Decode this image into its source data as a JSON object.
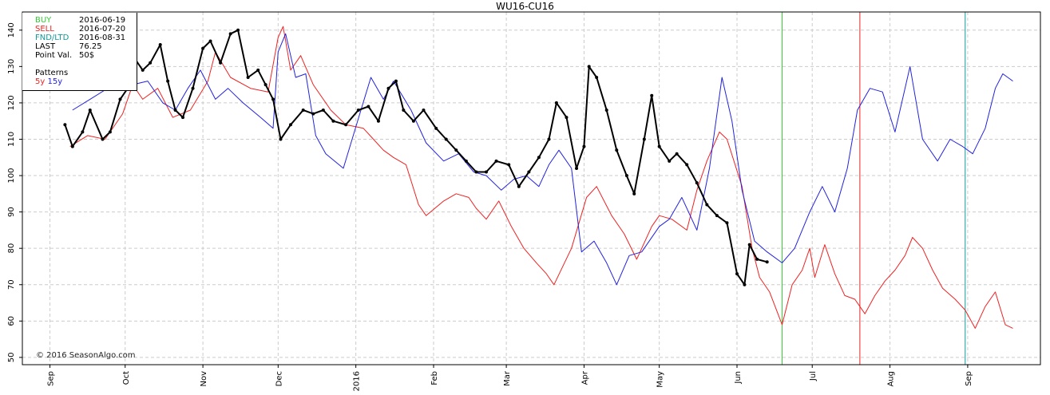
{
  "title": "WU16-CU16",
  "info": {
    "buy_label": "BUY",
    "buy_date": "2016-06-19",
    "sell_label": "SELL",
    "sell_date": "2016-07-20",
    "fnd_label": "FND/LTD",
    "fnd_date": "2016-08-31",
    "last_label": "LAST",
    "last_value": "76.25",
    "point_label": "Point Val.",
    "point_value": "50$",
    "patterns_label": "Patterns",
    "p5": "5y",
    "p15": "15y"
  },
  "credit": "© 2016 SeasonAlgo.com",
  "colors": {
    "buy": "#33cc33",
    "sell": "#ee2222",
    "fnd": "#119999",
    "p5": "#ee2222",
    "p15": "#2222dd",
    "price": "#000000"
  },
  "chart_data": {
    "type": "line",
    "title": "WU16-CU16",
    "ylim": [
      48,
      145
    ],
    "yticks": [
      50,
      60,
      70,
      80,
      90,
      100,
      110,
      120,
      130,
      140
    ],
    "xlim": [
      "2015-08-21",
      "2016-09-30"
    ],
    "xticks": [
      {
        "label": "Sep",
        "date": "2015-09-01"
      },
      {
        "label": "Oct",
        "date": "2015-10-01"
      },
      {
        "label": "Nov",
        "date": "2015-11-01"
      },
      {
        "label": "Dec",
        "date": "2015-12-01"
      },
      {
        "label": "2016",
        "date": "2016-01-01"
      },
      {
        "label": "Feb",
        "date": "2016-02-01"
      },
      {
        "label": "Mar",
        "date": "2016-03-01"
      },
      {
        "label": "Apr",
        "date": "2016-04-01"
      },
      {
        "label": "May",
        "date": "2016-05-01"
      },
      {
        "label": "Jun",
        "date": "2016-06-01"
      },
      {
        "label": "Jul",
        "date": "2016-07-01"
      },
      {
        "label": "Aug",
        "date": "2016-08-01"
      },
      {
        "label": "Sep",
        "date": "2016-09-01"
      }
    ],
    "grid": true,
    "vlines": [
      {
        "name": "BUY",
        "date": "2016-06-19"
      },
      {
        "name": "SELL",
        "date": "2016-07-20"
      },
      {
        "name": "FND/LTD",
        "date": "2016-08-31"
      }
    ],
    "series": [
      {
        "name": "5y",
        "style": "thin",
        "points": [
          [
            "2015-09-09",
            108
          ],
          [
            "2015-09-16",
            111
          ],
          [
            "2015-09-23",
            110
          ],
          [
            "2015-09-30",
            117
          ],
          [
            "2015-10-04",
            125
          ],
          [
            "2015-10-08",
            121
          ],
          [
            "2015-10-14",
            124
          ],
          [
            "2015-10-20",
            116
          ],
          [
            "2015-10-27",
            118
          ],
          [
            "2015-11-03",
            126
          ],
          [
            "2015-11-06",
            134
          ],
          [
            "2015-11-12",
            127
          ],
          [
            "2015-11-20",
            124
          ],
          [
            "2015-11-27",
            123
          ],
          [
            "2015-12-01",
            138
          ],
          [
            "2015-12-03",
            141
          ],
          [
            "2015-12-06",
            129
          ],
          [
            "2015-12-10",
            133
          ],
          [
            "2015-12-15",
            125
          ],
          [
            "2015-12-22",
            118
          ],
          [
            "2015-12-28",
            114
          ],
          [
            "2016-01-04",
            113
          ],
          [
            "2016-01-08",
            110
          ],
          [
            "2016-01-12",
            107
          ],
          [
            "2016-01-16",
            105
          ],
          [
            "2016-01-21",
            103
          ],
          [
            "2016-01-26",
            92
          ],
          [
            "2016-01-29",
            89
          ],
          [
            "2016-02-05",
            93
          ],
          [
            "2016-02-10",
            95
          ],
          [
            "2016-02-15",
            94
          ],
          [
            "2016-02-18",
            91
          ],
          [
            "2016-02-22",
            88
          ],
          [
            "2016-02-27",
            93
          ],
          [
            "2016-03-03",
            86
          ],
          [
            "2016-03-08",
            80
          ],
          [
            "2016-03-13",
            76
          ],
          [
            "2016-03-17",
            73
          ],
          [
            "2016-03-20",
            70
          ],
          [
            "2016-03-27",
            80
          ],
          [
            "2016-04-02",
            94
          ],
          [
            "2016-04-06",
            97
          ],
          [
            "2016-04-12",
            89
          ],
          [
            "2016-04-17",
            84
          ],
          [
            "2016-04-22",
            77
          ],
          [
            "2016-04-28",
            86
          ],
          [
            "2016-05-01",
            89
          ],
          [
            "2016-05-06",
            88
          ],
          [
            "2016-05-12",
            85
          ],
          [
            "2016-05-16",
            96
          ],
          [
            "2016-05-20",
            104
          ],
          [
            "2016-05-25",
            112
          ],
          [
            "2016-05-28",
            110
          ],
          [
            "2016-06-03",
            97
          ],
          [
            "2016-06-07",
            80
          ],
          [
            "2016-06-10",
            72
          ],
          [
            "2016-06-14",
            68
          ],
          [
            "2016-06-19",
            59
          ],
          [
            "2016-06-23",
            70
          ],
          [
            "2016-06-27",
            74
          ],
          [
            "2016-06-30",
            80
          ],
          [
            "2016-07-02",
            72
          ],
          [
            "2016-07-06",
            81
          ],
          [
            "2016-07-10",
            73
          ],
          [
            "2016-07-14",
            67
          ],
          [
            "2016-07-18",
            66
          ],
          [
            "2016-07-22",
            62
          ],
          [
            "2016-07-26",
            67
          ],
          [
            "2016-07-30",
            71
          ],
          [
            "2016-08-03",
            74
          ],
          [
            "2016-08-07",
            78
          ],
          [
            "2016-08-10",
            83
          ],
          [
            "2016-08-14",
            80
          ],
          [
            "2016-08-18",
            74
          ],
          [
            "2016-08-22",
            69
          ],
          [
            "2016-08-27",
            66
          ],
          [
            "2016-08-31",
            63
          ],
          [
            "2016-09-04",
            58
          ],
          [
            "2016-09-08",
            64
          ],
          [
            "2016-09-12",
            68
          ],
          [
            "2016-09-16",
            59
          ],
          [
            "2016-09-19",
            58
          ]
        ]
      },
      {
        "name": "15y",
        "style": "thin",
        "points": [
          [
            "2015-09-10",
            118
          ],
          [
            "2015-09-17",
            121
          ],
          [
            "2015-09-24",
            124
          ],
          [
            "2015-09-30",
            126
          ],
          [
            "2015-10-04",
            125
          ],
          [
            "2015-10-10",
            126
          ],
          [
            "2015-10-16",
            120
          ],
          [
            "2015-10-21",
            118
          ],
          [
            "2015-10-26",
            124
          ],
          [
            "2015-10-31",
            129
          ],
          [
            "2015-11-06",
            121
          ],
          [
            "2015-11-11",
            124
          ],
          [
            "2015-11-17",
            120
          ],
          [
            "2015-11-24",
            116
          ],
          [
            "2015-11-29",
            113
          ],
          [
            "2015-12-01",
            134
          ],
          [
            "2015-12-04",
            139
          ],
          [
            "2015-12-08",
            127
          ],
          [
            "2015-12-12",
            128
          ],
          [
            "2015-12-16",
            111
          ],
          [
            "2015-12-20",
            106
          ],
          [
            "2015-12-27",
            102
          ],
          [
            "2016-01-03",
            118
          ],
          [
            "2016-01-07",
            127
          ],
          [
            "2016-01-12",
            121
          ],
          [
            "2016-01-16",
            126
          ],
          [
            "2016-01-23",
            118
          ],
          [
            "2016-01-29",
            109
          ],
          [
            "2016-02-05",
            104
          ],
          [
            "2016-02-11",
            106
          ],
          [
            "2016-02-17",
            101
          ],
          [
            "2016-02-22",
            100
          ],
          [
            "2016-02-28",
            96
          ],
          [
            "2016-03-04",
            99
          ],
          [
            "2016-03-09",
            100
          ],
          [
            "2016-03-14",
            97
          ],
          [
            "2016-03-18",
            103
          ],
          [
            "2016-03-22",
            107
          ],
          [
            "2016-03-27",
            102
          ],
          [
            "2016-03-31",
            79
          ],
          [
            "2016-04-05",
            82
          ],
          [
            "2016-04-10",
            76
          ],
          [
            "2016-04-14",
            70
          ],
          [
            "2016-04-19",
            78
          ],
          [
            "2016-04-24",
            79
          ],
          [
            "2016-05-01",
            86
          ],
          [
            "2016-05-05",
            88
          ],
          [
            "2016-05-10",
            94
          ],
          [
            "2016-05-16",
            85
          ],
          [
            "2016-05-21",
            102
          ],
          [
            "2016-05-26",
            127
          ],
          [
            "2016-05-30",
            115
          ],
          [
            "2016-06-03",
            96
          ],
          [
            "2016-06-08",
            82
          ],
          [
            "2016-06-13",
            79
          ],
          [
            "2016-06-19",
            76
          ],
          [
            "2016-06-24",
            80
          ],
          [
            "2016-06-30",
            90
          ],
          [
            "2016-07-05",
            97
          ],
          [
            "2016-07-10",
            90
          ],
          [
            "2016-07-15",
            102
          ],
          [
            "2016-07-19",
            118
          ],
          [
            "2016-07-24",
            124
          ],
          [
            "2016-07-29",
            123
          ],
          [
            "2016-08-03",
            112
          ],
          [
            "2016-08-09",
            130
          ],
          [
            "2016-08-14",
            110
          ],
          [
            "2016-08-20",
            104
          ],
          [
            "2016-08-25",
            110
          ],
          [
            "2016-08-30",
            108
          ],
          [
            "2016-09-03",
            106
          ],
          [
            "2016-09-08",
            113
          ],
          [
            "2016-09-12",
            124
          ],
          [
            "2016-09-15",
            128
          ],
          [
            "2016-09-19",
            126
          ]
        ]
      },
      {
        "name": "WU16-CU16",
        "style": "thick",
        "points": [
          [
            "2015-09-07",
            114
          ],
          [
            "2015-09-10",
            108
          ],
          [
            "2015-09-14",
            112
          ],
          [
            "2015-09-17",
            118
          ],
          [
            "2015-09-22",
            110
          ],
          [
            "2015-09-25",
            112
          ],
          [
            "2015-09-29",
            121
          ],
          [
            "2015-10-02",
            124
          ],
          [
            "2015-10-05",
            132
          ],
          [
            "2015-10-08",
            129
          ],
          [
            "2015-10-11",
            131
          ],
          [
            "2015-10-15",
            136
          ],
          [
            "2015-10-18",
            126
          ],
          [
            "2015-10-21",
            118
          ],
          [
            "2015-10-24",
            116
          ],
          [
            "2015-10-28",
            124
          ],
          [
            "2015-11-01",
            135
          ],
          [
            "2015-11-04",
            137
          ],
          [
            "2015-11-08",
            131
          ],
          [
            "2015-11-12",
            139
          ],
          [
            "2015-11-15",
            140
          ],
          [
            "2015-11-19",
            127
          ],
          [
            "2015-11-23",
            129
          ],
          [
            "2015-11-26",
            125
          ],
          [
            "2015-11-29",
            121
          ],
          [
            "2015-12-02",
            110
          ],
          [
            "2015-12-06",
            114
          ],
          [
            "2015-12-11",
            118
          ],
          [
            "2015-12-15",
            117
          ],
          [
            "2015-12-19",
            118
          ],
          [
            "2015-12-23",
            115
          ],
          [
            "2015-12-28",
            114
          ],
          [
            "2016-01-02",
            118
          ],
          [
            "2016-01-06",
            119
          ],
          [
            "2016-01-10",
            115
          ],
          [
            "2016-01-14",
            124
          ],
          [
            "2016-01-17",
            126
          ],
          [
            "2016-01-20",
            118
          ],
          [
            "2016-01-24",
            115
          ],
          [
            "2016-01-28",
            118
          ],
          [
            "2016-02-02",
            113
          ],
          [
            "2016-02-06",
            110
          ],
          [
            "2016-02-10",
            107
          ],
          [
            "2016-02-14",
            104
          ],
          [
            "2016-02-18",
            101
          ],
          [
            "2016-02-22",
            101
          ],
          [
            "2016-02-26",
            104
          ],
          [
            "2016-03-02",
            103
          ],
          [
            "2016-03-06",
            97
          ],
          [
            "2016-03-10",
            101
          ],
          [
            "2016-03-14",
            105
          ],
          [
            "2016-03-18",
            110
          ],
          [
            "2016-03-21",
            120
          ],
          [
            "2016-03-25",
            116
          ],
          [
            "2016-03-29",
            102
          ],
          [
            "2016-04-01",
            108
          ],
          [
            "2016-04-03",
            130
          ],
          [
            "2016-04-06",
            127
          ],
          [
            "2016-04-10",
            118
          ],
          [
            "2016-04-14",
            107
          ],
          [
            "2016-04-18",
            100
          ],
          [
            "2016-04-21",
            95
          ],
          [
            "2016-04-25",
            110
          ],
          [
            "2016-04-28",
            122
          ],
          [
            "2016-05-01",
            108
          ],
          [
            "2016-05-05",
            104
          ],
          [
            "2016-05-08",
            106
          ],
          [
            "2016-05-12",
            103
          ],
          [
            "2016-05-16",
            98
          ],
          [
            "2016-05-20",
            92
          ],
          [
            "2016-05-24",
            89
          ],
          [
            "2016-05-28",
            87
          ],
          [
            "2016-06-01",
            73
          ],
          [
            "2016-06-04",
            70
          ],
          [
            "2016-06-06",
            81
          ],
          [
            "2016-06-09",
            77
          ],
          [
            "2016-06-13",
            76.25
          ]
        ]
      }
    ]
  }
}
